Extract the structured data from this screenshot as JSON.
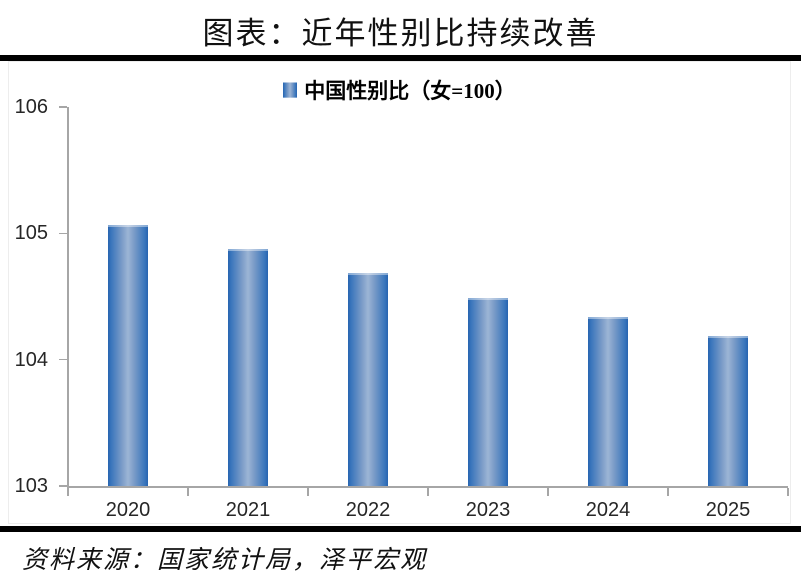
{
  "title": "图表：近年性别比持续改善",
  "legend": {
    "label": "中国性别比（女=100）"
  },
  "source": "资料来源：国家统计局，泽平宏观",
  "colors": {
    "bar_edge": "#2764b0",
    "bar_center": "#9cb5d5",
    "axis": "#a6a6a6",
    "divider": "#000000",
    "text": "#262626"
  },
  "chart_data": {
    "type": "bar",
    "title": "图表：近年性别比持续改善",
    "categories": [
      "2020",
      "2021",
      "2022",
      "2023",
      "2024",
      "2025"
    ],
    "values": [
      105.07,
      104.88,
      104.69,
      104.49,
      104.34,
      104.19
    ],
    "series_name": "中国性别比（女=100）",
    "xlabel": "",
    "ylabel": "",
    "ylim": [
      103,
      106
    ],
    "yticks": [
      103,
      104,
      105,
      106
    ],
    "grid": false,
    "legend_position": "top-center",
    "source": "资料来源：国家统计局，泽平宏观"
  }
}
